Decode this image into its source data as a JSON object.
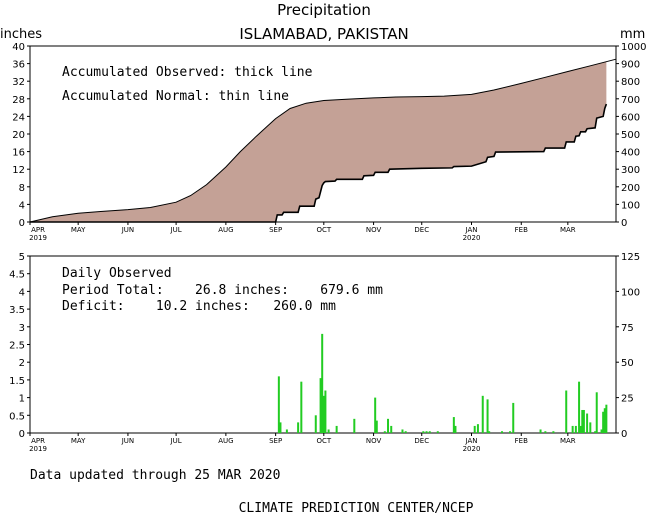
{
  "header": {
    "title": "Precipitation",
    "location": "ISLAMABAD, PAKISTAN"
  },
  "chart_data": [
    {
      "type": "area",
      "panel": "accumulated",
      "left_unit": "inches",
      "right_unit": "mm",
      "ylim": [
        0,
        40
      ],
      "ylim_mm": [
        0,
        1000
      ],
      "yticks": [
        "0",
        "4",
        "8",
        "12",
        "16",
        "20",
        "24",
        "28",
        "32",
        "36",
        "40"
      ],
      "yticks_mm": [
        "0",
        "100",
        "200",
        "300",
        "400",
        "500",
        "600",
        "700",
        "800",
        "900",
        "1000"
      ],
      "annotations": [
        "Accumulated Observed: thick line",
        "Accumulated Normal: thin line"
      ],
      "fill_color": "#c4a196",
      "x_range": [
        "2019-04-01",
        "2020-03-31"
      ],
      "series": [
        {
          "name": "Accumulated Normal",
          "x": [
            "2019-04-01",
            "2019-04-15",
            "2019-05-01",
            "2019-05-15",
            "2019-06-01",
            "2019-06-15",
            "2019-07-01",
            "2019-07-10",
            "2019-07-20",
            "2019-08-01",
            "2019-08-10",
            "2019-08-20",
            "2019-09-01",
            "2019-09-10",
            "2019-09-20",
            "2019-10-01",
            "2019-10-15",
            "2019-11-01",
            "2019-11-15",
            "2019-12-01",
            "2019-12-15",
            "2020-01-01",
            "2020-01-15",
            "2020-02-01",
            "2020-02-15",
            "2020-03-01",
            "2020-03-15",
            "2020-03-31"
          ],
          "values": [
            0.0,
            1.2,
            2.0,
            2.4,
            2.8,
            3.3,
            4.5,
            6.0,
            8.5,
            12.5,
            16.0,
            19.5,
            23.5,
            25.8,
            27.0,
            27.6,
            27.9,
            28.2,
            28.4,
            28.5,
            28.6,
            29.0,
            30.0,
            31.5,
            32.8,
            34.2,
            35.5,
            37.0
          ]
        },
        {
          "name": "Accumulated Observed",
          "x": [
            "2019-04-01",
            "2019-09-01",
            "2019-09-02",
            "2019-09-05",
            "2019-09-06",
            "2019-09-15",
            "2019-09-16",
            "2019-09-25",
            "2019-09-26",
            "2019-09-28",
            "2019-09-30",
            "2019-10-01",
            "2019-10-02",
            "2019-10-08",
            "2019-10-09",
            "2019-10-25",
            "2019-10-26",
            "2019-11-01",
            "2019-11-02",
            "2019-11-10",
            "2019-11-11",
            "2019-12-01",
            "2019-12-20",
            "2019-12-21",
            "2020-01-01",
            "2020-01-10",
            "2020-01-11",
            "2020-01-15",
            "2020-01-16",
            "2020-02-15",
            "2020-02-16",
            "2020-02-28",
            "2020-02-29",
            "2020-03-05",
            "2020-03-06",
            "2020-03-08",
            "2020-03-09",
            "2020-03-12",
            "2020-03-13",
            "2020-03-18",
            "2020-03-19",
            "2020-03-23",
            "2020-03-24",
            "2020-03-25"
          ],
          "values": [
            0.0,
            0.0,
            1.6,
            1.6,
            2.2,
            2.2,
            3.6,
            3.6,
            5.2,
            5.5,
            8.3,
            8.9,
            9.2,
            9.3,
            9.7,
            9.7,
            10.5,
            10.6,
            11.3,
            11.3,
            12.0,
            12.2,
            12.3,
            12.6,
            12.7,
            13.7,
            14.7,
            14.9,
            15.9,
            16.0,
            16.8,
            16.8,
            18.2,
            18.2,
            19.5,
            19.6,
            20.5,
            20.5,
            21.2,
            21.4,
            23.6,
            24.0,
            25.8,
            26.8
          ]
        }
      ]
    },
    {
      "type": "bar",
      "panel": "daily",
      "ylim": [
        0,
        5
      ],
      "ylim_mm": [
        0,
        125
      ],
      "yticks": [
        "0",
        "0.5",
        "1",
        "1.5",
        "2",
        "2.5",
        "3",
        "3.5",
        "4",
        "4.5",
        "5"
      ],
      "yticks_mm": [
        "0",
        "25",
        "50",
        "75",
        "100",
        "125"
      ],
      "bar_color": "#22cc22",
      "annotations": {
        "label": "Daily Observed",
        "period_total_line": "Period Total:    26.8 inches:    679.6 mm",
        "deficit_line": "Deficit:    10.2 inches:   260.0 mm"
      },
      "series": [
        {
          "name": "Daily Observed",
          "x": [
            "2019-09-03",
            "2019-09-04",
            "2019-09-08",
            "2019-09-15",
            "2019-09-17",
            "2019-09-26",
            "2019-09-29",
            "2019-09-30",
            "2019-10-01",
            "2019-10-02",
            "2019-10-04",
            "2019-10-09",
            "2019-10-20",
            "2019-11-02",
            "2019-11-03",
            "2019-11-08",
            "2019-11-10",
            "2019-11-12",
            "2019-11-19",
            "2019-11-21",
            "2019-12-02",
            "2019-12-04",
            "2019-12-06",
            "2019-12-11",
            "2019-12-21",
            "2019-12-22",
            "2020-01-03",
            "2020-01-05",
            "2020-01-08",
            "2020-01-11",
            "2020-01-12",
            "2020-01-20",
            "2020-01-25",
            "2020-01-27",
            "2020-02-13",
            "2020-02-16",
            "2020-02-21",
            "2020-02-29",
            "2020-03-04",
            "2020-03-06",
            "2020-03-08",
            "2020-03-09",
            "2020-03-10",
            "2020-03-11",
            "2020-03-13",
            "2020-03-15",
            "2020-03-18",
            "2020-03-19",
            "2020-03-22",
            "2020-03-23",
            "2020-03-24",
            "2020-03-25"
          ],
          "values": [
            1.6,
            0.3,
            0.1,
            0.3,
            1.45,
            0.5,
            1.55,
            2.8,
            1.05,
            1.2,
            0.1,
            0.2,
            0.4,
            1.0,
            0.35,
            0.05,
            0.4,
            0.2,
            0.1,
            0.05,
            0.05,
            0.05,
            0.05,
            0.05,
            0.45,
            0.2,
            0.2,
            0.25,
            1.05,
            0.95,
            0.05,
            0.05,
            0.05,
            0.85,
            0.1,
            0.05,
            0.05,
            1.2,
            0.2,
            0.2,
            1.45,
            0.2,
            0.65,
            0.65,
            0.55,
            0.3,
            0.05,
            1.15,
            0.1,
            0.6,
            0.7,
            0.8
          ]
        }
      ]
    }
  ],
  "x_axis": {
    "months": [
      {
        "label": "APR",
        "year": "2019",
        "date": "2019-04-01"
      },
      {
        "label": "MAY",
        "year": "",
        "date": "2019-05-01"
      },
      {
        "label": "JUN",
        "year": "",
        "date": "2019-06-01"
      },
      {
        "label": "JUL",
        "year": "",
        "date": "2019-07-01"
      },
      {
        "label": "AUG",
        "year": "",
        "date": "2019-08-01"
      },
      {
        "label": "SEP",
        "year": "",
        "date": "2019-09-01"
      },
      {
        "label": "OCT",
        "year": "",
        "date": "2019-10-01"
      },
      {
        "label": "NOV",
        "year": "",
        "date": "2019-11-01"
      },
      {
        "label": "DEC",
        "year": "",
        "date": "2019-12-01"
      },
      {
        "label": "JAN",
        "year": "2020",
        "date": "2020-01-01"
      },
      {
        "label": "FEB",
        "year": "",
        "date": "2020-02-01"
      },
      {
        "label": "MAR",
        "year": "",
        "date": "2020-03-01"
      }
    ]
  },
  "footer": {
    "updated": "Data updated through 25 MAR 2020",
    "credit": "CLIMATE PREDICTION CENTER/NCEP"
  }
}
